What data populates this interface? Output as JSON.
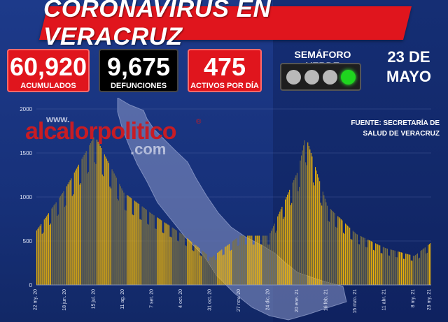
{
  "header": {
    "title": "CORONAVIRUS EN VERACRUZ"
  },
  "stats": {
    "acumulados": {
      "value": "60,920",
      "label": "ACUMULADOS"
    },
    "defunciones": {
      "value": "9,675",
      "label": "DEFUNCIONES"
    },
    "activos": {
      "value": "475",
      "label": "ACTIVOS POR DÍA"
    }
  },
  "semaforo": {
    "label": "SEMÁFORO VERDE",
    "active_light": 4,
    "lights": 4
  },
  "date": {
    "line1": "23 DE",
    "line2": "MAYO"
  },
  "source": {
    "line1": "FUENTE: SECRETARÍA DE",
    "line2": "SALUD DE VERACRUZ"
  },
  "watermark": {
    "www": "www.",
    "brand": "alcalorpolitico",
    "com": ".com",
    "reg": "®"
  },
  "colors": {
    "title_red": "#e0151d",
    "bar_yellow": "#f2b705",
    "bar_olive": "#7d7343",
    "semaforo_green": "#1fd41f"
  },
  "chart_data": {
    "type": "bar",
    "title": "",
    "xlabel": "",
    "ylabel": "",
    "ylim": [
      0,
      2000
    ],
    "yticks": [
      "0",
      "500",
      "1000",
      "1500",
      "2000"
    ],
    "xticks": [
      "22 my. 20",
      "18 jun. 20",
      "15 jul. 20",
      "11 ag. 20",
      "7 set. 20",
      "4 oct. 20",
      "31 oct. 20",
      "27 nov. 20",
      "24 dic. 20",
      "20 ene. 21",
      "16 feb. 21",
      "15 mzo. 21",
      "11 abr. 21",
      "8 my. 21",
      "23 my. 21"
    ],
    "grid": true,
    "bar_colors_note": "alternating weekly bands of yellow and olive",
    "daily_active_cases_key_points": [
      {
        "x": "22 my. 20",
        "y": 620
      },
      {
        "x": "18 jun. 20",
        "y": 1100
      },
      {
        "x": "15 jul. 20",
        "y": 1700
      },
      {
        "x": "11 ag. 20",
        "y": 1050
      },
      {
        "x": "7 set. 20",
        "y": 800
      },
      {
        "x": "4 oct. 20",
        "y": 580
      },
      {
        "x": "31 oct. 20",
        "y": 310
      },
      {
        "x": "27 nov. 20",
        "y": 560
      },
      {
        "x": "24 dic. 20",
        "y": 560
      },
      {
        "x": "20 ene. 21",
        "y": 1300
      },
      {
        "x": "27 ene. 21",
        "y": 1700
      },
      {
        "x": "16 feb. 21",
        "y": 900
      },
      {
        "x": "15 mzo. 21",
        "y": 580
      },
      {
        "x": "11 abr. 21",
        "y": 420
      },
      {
        "x": "8 my. 21",
        "y": 330
      },
      {
        "x": "23 my. 21",
        "y": 475
      }
    ]
  }
}
